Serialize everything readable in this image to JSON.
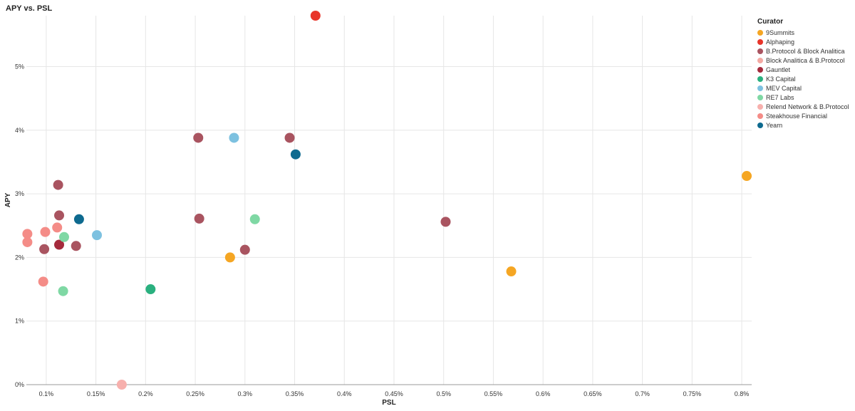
{
  "chart_data": {
    "type": "scatter",
    "title": "APY vs. PSL",
    "xlabel": "PSL",
    "ylabel": "APY",
    "xlim": [
      0.08,
      0.81
    ],
    "ylim": [
      0,
      5.8
    ],
    "x_ticks": [
      {
        "value": 0.1,
        "label": "0.1%"
      },
      {
        "value": 0.15,
        "label": "0.15%"
      },
      {
        "value": 0.2,
        "label": "0.2%"
      },
      {
        "value": 0.25,
        "label": "0.25%"
      },
      {
        "value": 0.3,
        "label": "0.3%"
      },
      {
        "value": 0.35,
        "label": "0.35%"
      },
      {
        "value": 0.4,
        "label": "0.4%"
      },
      {
        "value": 0.45,
        "label": "0.45%"
      },
      {
        "value": 0.5,
        "label": "0.5%"
      },
      {
        "value": 0.55,
        "label": "0.55%"
      },
      {
        "value": 0.6,
        "label": "0.6%"
      },
      {
        "value": 0.65,
        "label": "0.65%"
      },
      {
        "value": 0.7,
        "label": "0.7%"
      },
      {
        "value": 0.75,
        "label": "0.75%"
      },
      {
        "value": 0.8,
        "label": "0.8%"
      }
    ],
    "y_ticks": [
      {
        "value": 0,
        "label": "0%"
      },
      {
        "value": 1,
        "label": "1%"
      },
      {
        "value": 2,
        "label": "2%"
      },
      {
        "value": 3,
        "label": "3%"
      },
      {
        "value": 4,
        "label": "4%"
      },
      {
        "value": 5,
        "label": "5%"
      }
    ],
    "grid": true,
    "legend_title": "Curator",
    "legend_position": "top-right",
    "series": [
      {
        "name": "9Summits",
        "color": "#f5a623",
        "points": [
          [
            0.285,
            2.0
          ],
          [
            0.568,
            1.78
          ],
          [
            0.805,
            3.28
          ]
        ]
      },
      {
        "name": "Alphaping",
        "color": "#e8352a",
        "points": [
          [
            0.371,
            5.8
          ]
        ]
      },
      {
        "name": "B.Protocol & Block Analitica",
        "color": "#a95460",
        "points": [
          [
            0.112,
            3.14
          ],
          [
            0.113,
            2.66
          ],
          [
            0.098,
            2.13
          ],
          [
            0.13,
            2.18
          ],
          [
            0.253,
            3.88
          ],
          [
            0.254,
            2.61
          ],
          [
            0.3,
            2.12
          ],
          [
            0.345,
            3.88
          ],
          [
            0.502,
            2.56
          ]
        ]
      },
      {
        "name": "Block Analitica & B.Protocol",
        "color": "#f4a9a3",
        "points": []
      },
      {
        "name": "Gauntlet",
        "color": "#a52a3c",
        "points": [
          [
            0.113,
            2.2
          ]
        ]
      },
      {
        "name": "K3 Capital",
        "color": "#2ab07f",
        "points": [
          [
            0.205,
            1.5
          ]
        ]
      },
      {
        "name": "MEV Capital",
        "color": "#7dc1e0",
        "points": [
          [
            0.151,
            2.35
          ],
          [
            0.289,
            3.88
          ]
        ]
      },
      {
        "name": "RE7 Labs",
        "color": "#7fd8a4",
        "points": [
          [
            0.117,
            1.47
          ],
          [
            0.118,
            2.32
          ],
          [
            0.31,
            2.6
          ]
        ]
      },
      {
        "name": "Relend Network & B.Protocol",
        "color": "#f7b0ad",
        "points": [
          [
            0.176,
            0.0
          ]
        ]
      },
      {
        "name": "Steakhouse Financial",
        "color": "#f48c87",
        "points": [
          [
            0.081,
            2.37
          ],
          [
            0.081,
            2.24
          ],
          [
            0.099,
            2.4
          ],
          [
            0.111,
            2.47
          ],
          [
            0.097,
            1.62
          ]
        ]
      },
      {
        "name": "Yearn",
        "color": "#0e6a8f",
        "points": [
          [
            0.133,
            2.6
          ],
          [
            0.351,
            3.62
          ]
        ]
      }
    ]
  }
}
